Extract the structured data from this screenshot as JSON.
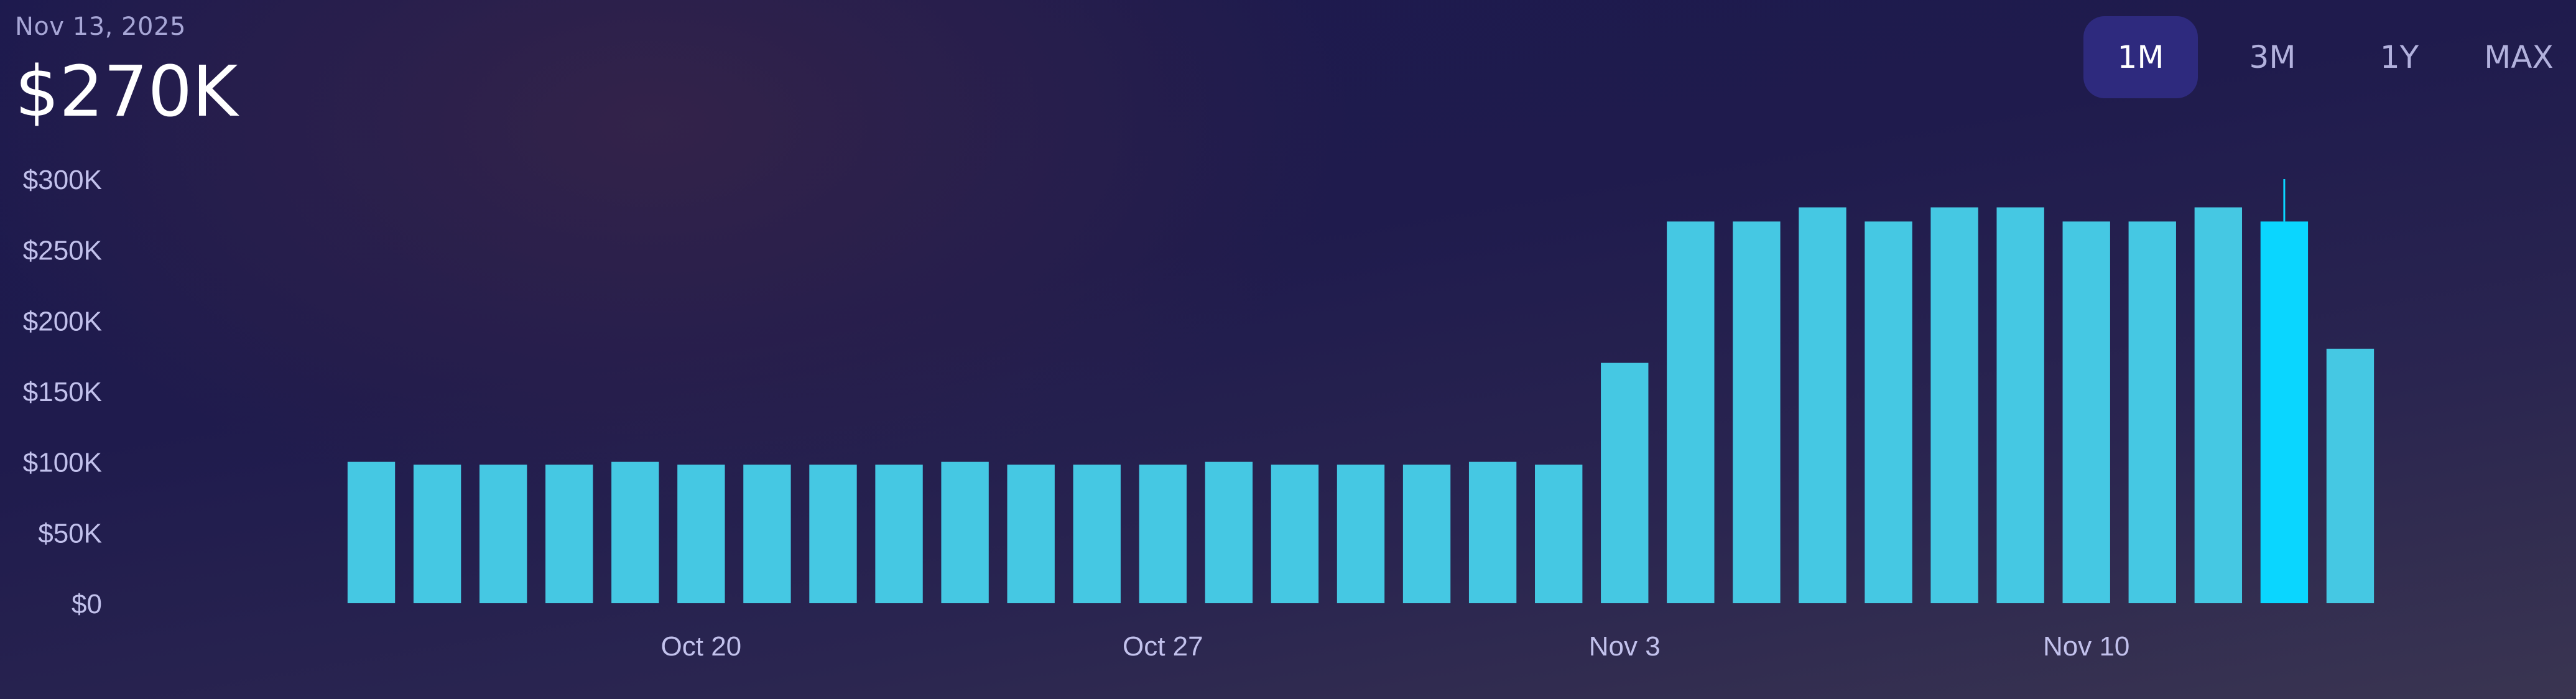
{
  "header": {
    "date": "Nov 13, 2025",
    "value": "$270K"
  },
  "ranges": [
    {
      "label": "1M",
      "active": true
    },
    {
      "label": "3M",
      "active": false
    },
    {
      "label": "1Y",
      "active": false
    },
    {
      "label": "MAX",
      "active": false
    }
  ],
  "colors": {
    "bar": "#45c8e3",
    "bar_selected": "#0ad6ff",
    "tick_text": "#c2c1ec"
  },
  "chart_data": {
    "type": "bar",
    "title": "",
    "xlabel": "",
    "ylabel": "",
    "ylim": [
      0,
      300000
    ],
    "y_ticks": [
      {
        "value": 0,
        "label": "$0"
      },
      {
        "value": 50000,
        "label": "$50K"
      },
      {
        "value": 100000,
        "label": "$100K"
      },
      {
        "value": 150000,
        "label": "$150K"
      },
      {
        "value": 200000,
        "label": "$200K"
      },
      {
        "value": 250000,
        "label": "$250K"
      },
      {
        "value": 300000,
        "label": "$300K"
      }
    ],
    "x": [
      "2025-10-15",
      "2025-10-16",
      "2025-10-17",
      "2025-10-18",
      "2025-10-19",
      "2025-10-20",
      "2025-10-21",
      "2025-10-22",
      "2025-10-23",
      "2025-10-24",
      "2025-10-25",
      "2025-10-26",
      "2025-10-27",
      "2025-10-28",
      "2025-10-29",
      "2025-10-30",
      "2025-10-31",
      "2025-11-01",
      "2025-11-02",
      "2025-11-03",
      "2025-11-04",
      "2025-11-05",
      "2025-11-06",
      "2025-11-07",
      "2025-11-08",
      "2025-11-09",
      "2025-11-10",
      "2025-11-11",
      "2025-11-12",
      "2025-11-13",
      "2025-11-14"
    ],
    "values": [
      100000,
      98000,
      98000,
      98000,
      100000,
      98000,
      98000,
      98000,
      98000,
      100000,
      98000,
      98000,
      98000,
      100000,
      98000,
      98000,
      98000,
      100000,
      98000,
      170000,
      270000,
      270000,
      280000,
      270000,
      280000,
      280000,
      270000,
      270000,
      280000,
      270000,
      180000
    ],
    "x_ticks": [
      {
        "x": "2025-10-20",
        "label": "Oct 20"
      },
      {
        "x": "2025-10-27",
        "label": "Oct 27"
      },
      {
        "x": "2025-11-03",
        "label": "Nov 3"
      },
      {
        "x": "2025-11-10",
        "label": "Nov 10"
      }
    ],
    "selected": "2025-11-13",
    "grid": false,
    "legend": "none"
  }
}
